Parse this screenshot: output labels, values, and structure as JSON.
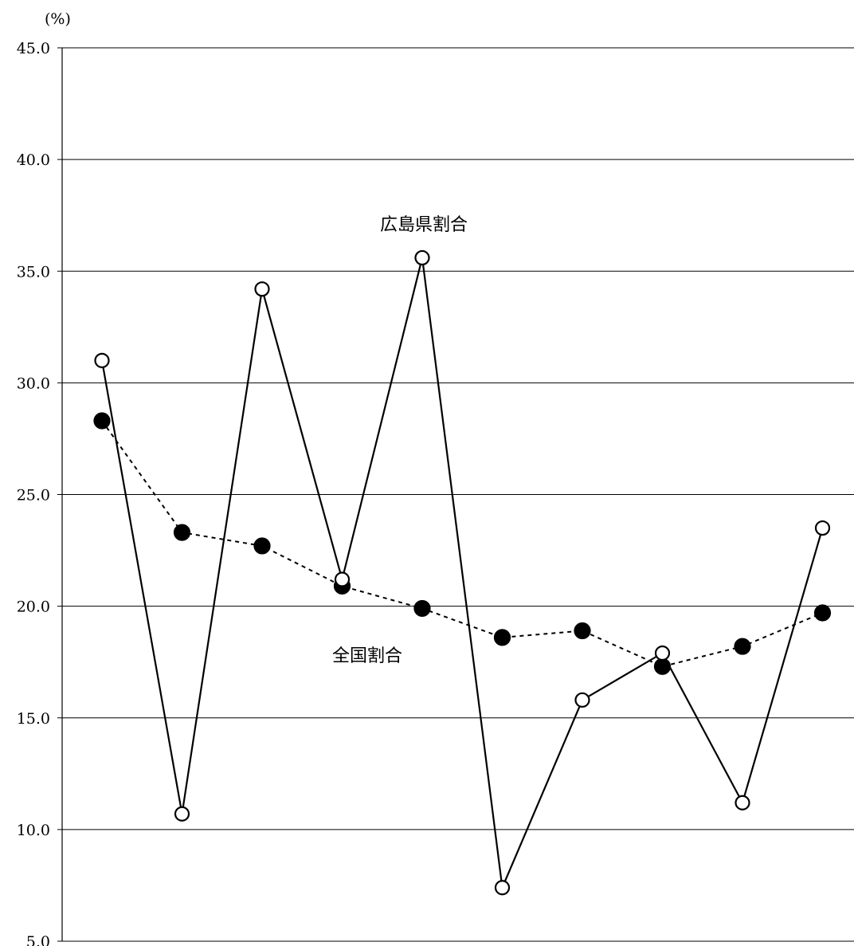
{
  "chart_data": {
    "type": "line",
    "title": "",
    "xlabel": "",
    "ylabel": "",
    "unit_label": "(%)",
    "ylim": [
      5.0,
      45.0
    ],
    "yticks": [
      45.0,
      40.0,
      35.0,
      30.0,
      25.0,
      20.0,
      15.0,
      10.0,
      5.0
    ],
    "ytick_labels": [
      "45.0",
      "40.0",
      "35.0",
      "30.0",
      "25.0",
      "20.0",
      "15.0",
      "10.0",
      "5.0"
    ],
    "grid": true,
    "x": [
      1,
      2,
      3,
      4,
      5,
      6,
      7,
      8,
      9,
      10
    ],
    "series": [
      {
        "name": "広島県割合",
        "style": "solid",
        "marker": "open-circle",
        "values": [
          31.0,
          10.7,
          34.2,
          21.2,
          35.6,
          7.4,
          15.8,
          17.9,
          11.2,
          23.5
        ]
      },
      {
        "name": "全国割合",
        "style": "dashed",
        "marker": "filled-circle",
        "values": [
          28.3,
          23.3,
          22.7,
          20.9,
          19.9,
          18.6,
          18.9,
          17.3,
          18.2,
          19.7
        ]
      }
    ],
    "colors": {
      "line": "#000000",
      "background": "#ffffff"
    }
  }
}
